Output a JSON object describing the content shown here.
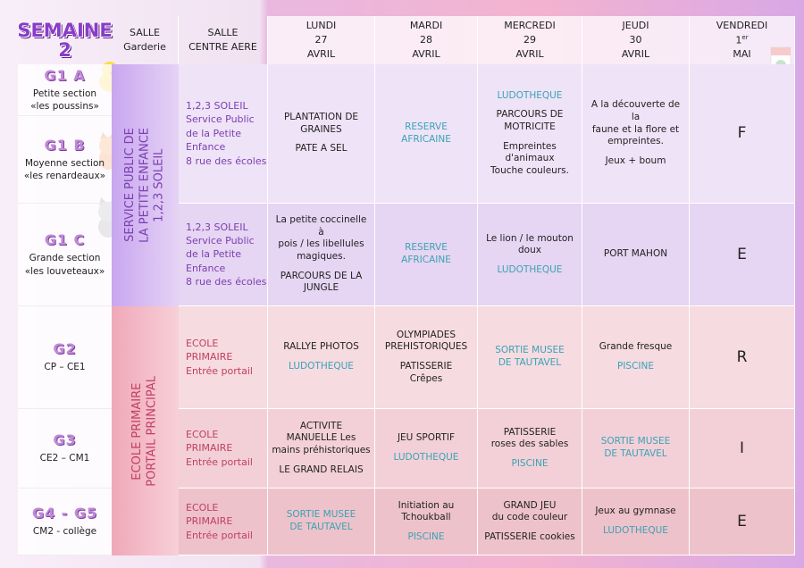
{
  "header": {
    "title": [
      "SEMAINE",
      "2"
    ],
    "garderie": [
      "SALLE",
      "Garderie"
    ],
    "centre": [
      "SALLE",
      "CENTRE AERE"
    ],
    "days": [
      {
        "name": "LUNDI",
        "date": "27",
        "month": "AVRIL"
      },
      {
        "name": "MARDI",
        "date": "28",
        "month": "AVRIL"
      },
      {
        "name": "MERCREDI",
        "date": "29",
        "month": "AVRIL"
      },
      {
        "name": "JEUDI",
        "date": "30",
        "month": "AVRIL"
      },
      {
        "name": "VENDREDI",
        "date": "1",
        "date_suffix": "er",
        "month": "MAI"
      }
    ]
  },
  "groups": [
    {
      "code": "G1 A",
      "lines": [
        "Petite section",
        "«les poussins»"
      ]
    },
    {
      "code": "G1 B",
      "lines": [
        "Moyenne section",
        "«les renardeaux»"
      ]
    },
    {
      "code": "G1 C",
      "lines": [
        "Grande section",
        "«les louveteaux»"
      ]
    },
    {
      "code": "G2",
      "lines": [
        "CP – CE1"
      ]
    },
    {
      "code": "G3",
      "lines": [
        "CE2 – CM1"
      ]
    },
    {
      "code": "G4 - G5",
      "lines": [
        "CM2 - collège"
      ]
    }
  ],
  "sections": [
    {
      "lines": [
        "SERVICE PUBLIC DE",
        "LA PETITE ENFANCE",
        "1,2,3 SOLEIL"
      ],
      "color": "#7a3fb0"
    },
    {
      "lines": [
        "ECOLE PRIMAIRE",
        "PORTAIL PRINCIPAL"
      ],
      "color": "#c0405e"
    }
  ],
  "rows": [
    {
      "location": {
        "lines": [
          "1,2,3 SOLEIL",
          "Service Public",
          "de la Petite",
          "Enfance",
          "8 rue des écoles"
        ],
        "color": "#7a3fb0"
      },
      "cells": [
        [
          {
            "lines": [
              "PLANTATION DE",
              "GRAINES"
            ]
          },
          {
            "lines": [
              "PATE A SEL"
            ]
          }
        ],
        [
          {
            "lines": [
              "RESERVE",
              "AFRICAINE"
            ],
            "color": "#3aa3b5"
          }
        ],
        [
          {
            "lines": [
              "LUDOTHEQUE"
            ],
            "color": "#3aa3b5"
          },
          {
            "lines": [
              "PARCOURS DE",
              "MOTRICITE"
            ]
          },
          {
            "lines": [
              "Empreintes",
              "d'animaux",
              "Touche couleurs."
            ]
          }
        ],
        [
          {
            "lines": [
              "A la découverte de la",
              "faune et la flore et",
              "empreintes."
            ]
          },
          {
            "lines": [
              "Jeux + boum"
            ]
          }
        ],
        [
          {
            "lines": [
              "F"
            ]
          }
        ]
      ]
    },
    {
      "location": {
        "lines": [
          "1,2,3 SOLEIL",
          "Service Public",
          "de la Petite",
          "Enfance",
          "8 rue des écoles"
        ],
        "color": "#7a3fb0"
      },
      "cells": [
        [
          {
            "lines": [
              "La petite coccinelle à",
              "pois / les libellules",
              "magiques."
            ]
          },
          {
            "lines": [
              "PARCOURS DE LA",
              "JUNGLE"
            ]
          }
        ],
        [
          {
            "lines": [
              "RESERVE",
              "AFRICAINE"
            ],
            "color": "#3aa3b5"
          }
        ],
        [
          {
            "lines": [
              "Le lion / le mouton",
              "doux"
            ]
          },
          {
            "lines": [
              "LUDOTHEQUE"
            ],
            "color": "#3aa3b5"
          }
        ],
        [
          {
            "lines": [
              "PORT MAHON"
            ]
          }
        ],
        [
          {
            "lines": [
              "E"
            ]
          }
        ]
      ]
    },
    {
      "location": {
        "lines": [
          "ECOLE",
          "PRIMAIRE",
          "Entrée portail"
        ],
        "color": "#c0405e"
      },
      "cells": [
        [
          {
            "lines": [
              "RALLYE PHOTOS"
            ]
          },
          {
            "lines": [
              "LUDOTHEQUE"
            ],
            "color": "#3aa3b5"
          }
        ],
        [
          {
            "lines": [
              "OLYMPIADES",
              "PREHISTORIQUES"
            ]
          },
          {
            "lines": [
              "PATISSERIE",
              "Crêpes"
            ]
          }
        ],
        [
          {
            "lines": [
              "SORTIE MUSEE",
              "DE TAUTAVEL"
            ],
            "color": "#3aa3b5"
          }
        ],
        [
          {
            "lines": [
              "Grande fresque"
            ]
          },
          {
            "lines": [
              "PISCINE"
            ],
            "color": "#3aa3b5"
          }
        ],
        [
          {
            "lines": [
              "R"
            ]
          }
        ]
      ]
    },
    {
      "location": {
        "lines": [
          "ECOLE",
          "PRIMAIRE",
          "Entrée portail"
        ],
        "color": "#c0405e"
      },
      "cells": [
        [
          {
            "lines": [
              "ACTIVITE",
              "MANUELLE Les",
              "mains préhistoriques"
            ]
          },
          {
            "lines": [
              "LE GRAND RELAIS"
            ]
          }
        ],
        [
          {
            "lines": [
              "JEU SPORTIF"
            ]
          },
          {
            "lines": [
              "LUDOTHEQUE"
            ],
            "color": "#3aa3b5"
          }
        ],
        [
          {
            "lines": [
              "PATISSERIE",
              "roses des sables"
            ]
          },
          {
            "lines": [
              "PISCINE"
            ],
            "color": "#3aa3b5"
          }
        ],
        [
          {
            "lines": [
              "SORTIE MUSEE",
              "DE TAUTAVEL"
            ],
            "color": "#3aa3b5"
          }
        ],
        [
          {
            "lines": [
              "I"
            ]
          }
        ]
      ]
    },
    {
      "location": {
        "lines": [
          "ECOLE",
          "PRIMAIRE",
          "Entrée portail"
        ],
        "color": "#c0405e"
      },
      "cells": [
        [
          {
            "lines": [
              "SORTIE MUSEE",
              "DE TAUTAVEL"
            ],
            "color": "#3aa3b5"
          }
        ],
        [
          {
            "lines": [
              "Initiation au",
              "Tchoukball"
            ]
          },
          {
            "lines": [
              "PISCINE"
            ],
            "color": "#3aa3b5"
          }
        ],
        [
          {
            "lines": [
              "GRAND JEU",
              "du code couleur"
            ]
          },
          {
            "lines": [
              "PATISSERIE cookies"
            ]
          }
        ],
        [
          {
            "lines": [
              "Jeux au gymnase"
            ]
          },
          {
            "lines": [
              "LUDOTHEQUE"
            ],
            "color": "#3aa3b5"
          }
        ],
        [
          {
            "lines": [
              "E"
            ]
          }
        ]
      ]
    }
  ]
}
